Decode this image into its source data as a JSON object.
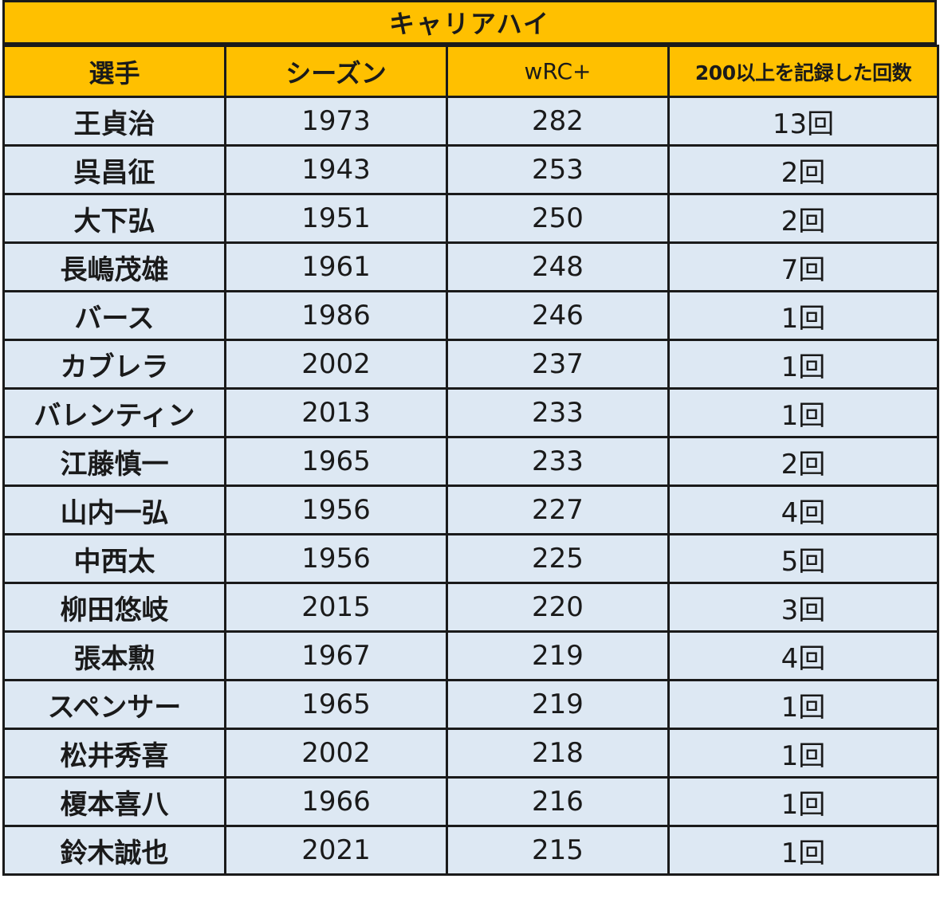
{
  "title": "キャリアハイ",
  "headers": {
    "player": "選手",
    "season": "シーズン",
    "wrc": "wRC+",
    "count": "200以上を記録した回数"
  },
  "rows": [
    {
      "player": "王貞治",
      "season": "1973",
      "wrc": "282",
      "count": "13回"
    },
    {
      "player": "呉昌征",
      "season": "1943",
      "wrc": "253",
      "count": "2回"
    },
    {
      "player": "大下弘",
      "season": "1951",
      "wrc": "250",
      "count": "2回"
    },
    {
      "player": "長嶋茂雄",
      "season": "1961",
      "wrc": "248",
      "count": "7回"
    },
    {
      "player": "バース",
      "season": "1986",
      "wrc": "246",
      "count": "1回"
    },
    {
      "player": "カブレラ",
      "season": "2002",
      "wrc": "237",
      "count": "1回"
    },
    {
      "player": "バレンティン",
      "season": "2013",
      "wrc": "233",
      "count": "1回"
    },
    {
      "player": "江藤慎一",
      "season": "1965",
      "wrc": "233",
      "count": "2回"
    },
    {
      "player": "山内一弘",
      "season": "1956",
      "wrc": "227",
      "count": "4回"
    },
    {
      "player": "中西太",
      "season": "1956",
      "wrc": "225",
      "count": "5回"
    },
    {
      "player": "柳田悠岐",
      "season": "2015",
      "wrc": "220",
      "count": "3回"
    },
    {
      "player": "張本勲",
      "season": "1967",
      "wrc": "219",
      "count": "4回"
    },
    {
      "player": "スペンサー",
      "season": "1965",
      "wrc": "219",
      "count": "1回"
    },
    {
      "player": "松井秀喜",
      "season": "2002",
      "wrc": "218",
      "count": "1回"
    },
    {
      "player": "榎本喜八",
      "season": "1966",
      "wrc": "216",
      "count": "1回"
    },
    {
      "player": "鈴木誠也",
      "season": "2021",
      "wrc": "215",
      "count": "1回"
    }
  ],
  "colors": {
    "header_bg": "#ffc000",
    "row_bg": "#dde8f3",
    "border": "#1a1a1a"
  }
}
